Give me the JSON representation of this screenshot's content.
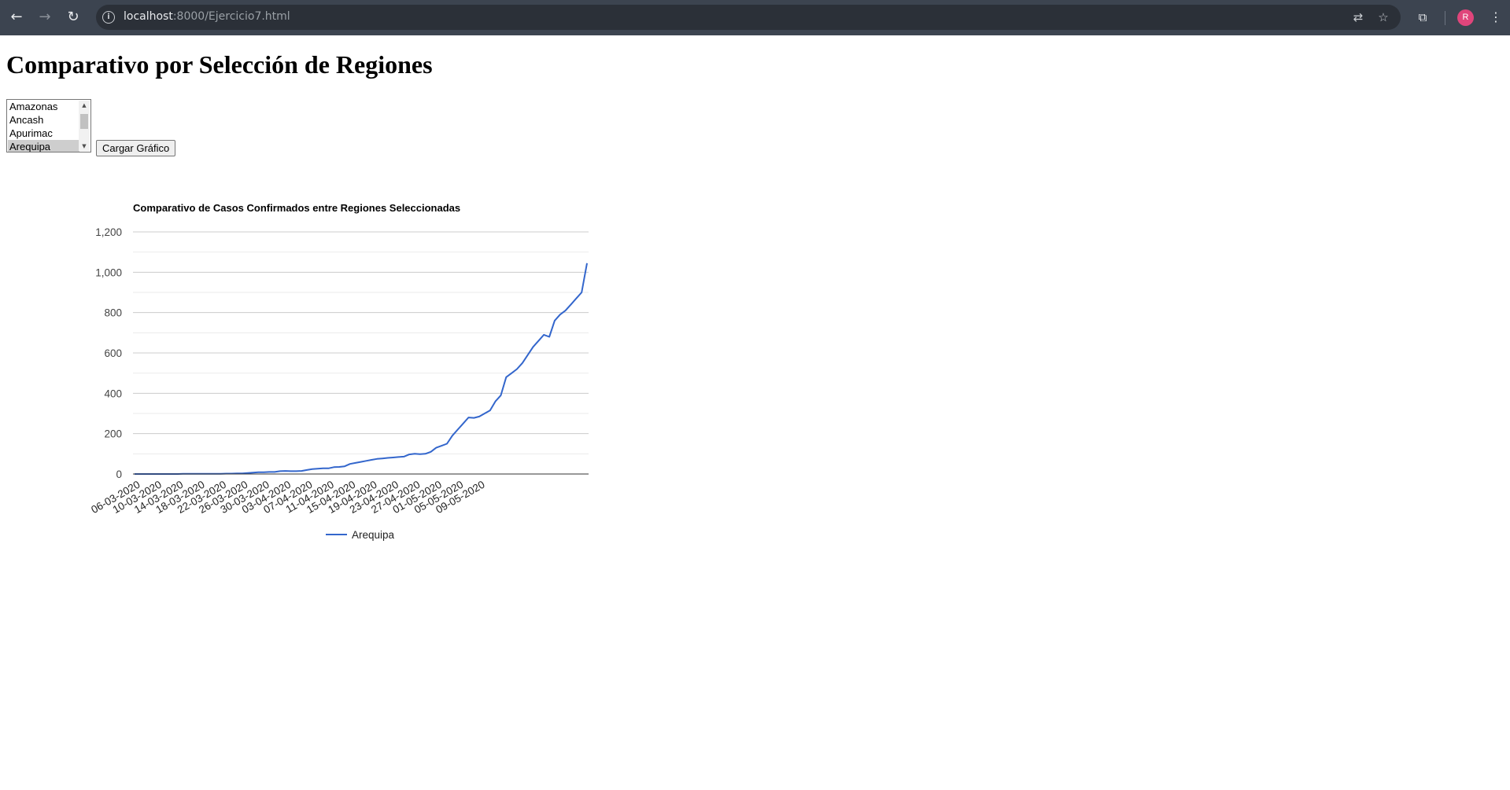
{
  "browser": {
    "url_host": "localhost",
    "url_rest": ":8000/Ejercicio7.html",
    "profile_initial": "R"
  },
  "page": {
    "title": "Comparativo por Selección de Regiones",
    "regions": [
      "Amazonas",
      "Ancash",
      "Apurimac",
      "Arequipa"
    ],
    "selected_region": "Arequipa",
    "load_button": "Cargar Gráfico"
  },
  "chart_data": {
    "type": "line",
    "title": "Comparativo de Casos Confirmados entre Regiones Seleccionadas",
    "xlabel": "",
    "ylabel": "",
    "ylim": [
      0,
      1200
    ],
    "yticks": [
      0,
      200,
      400,
      600,
      800,
      1000,
      1200
    ],
    "ytick_labels": [
      "0",
      "200",
      "400",
      "600",
      "800",
      "1,000",
      "1,200"
    ],
    "grid": true,
    "legend_position": "bottom",
    "x_tick_labels": [
      "06-03-2020",
      "10-03-2020",
      "14-03-2020",
      "18-03-2020",
      "22-03-2020",
      "26-03-2020",
      "30-03-2020",
      "03-04-2020",
      "07-04-2020",
      "11-04-2020",
      "15-04-2020",
      "19-04-2020",
      "23-04-2020",
      "27-04-2020",
      "01-05-2020",
      "05-05-2020",
      "09-05-2020"
    ],
    "series": [
      {
        "name": "Arequipa",
        "color": "#3366cc",
        "values": [
          0,
          0,
          0,
          0,
          0,
          0,
          0,
          0,
          0,
          1,
          1,
          1,
          1,
          1,
          1,
          1,
          1,
          2,
          2,
          3,
          3,
          5,
          7,
          9,
          9,
          10,
          10,
          14,
          15,
          14,
          14,
          15,
          20,
          24,
          26,
          28,
          28,
          34,
          35,
          38,
          50,
          55,
          60,
          65,
          70,
          75,
          77,
          80,
          82,
          84,
          86,
          97,
          100,
          98,
          100,
          110,
          130,
          140,
          150,
          190,
          220,
          250,
          280,
          278,
          285,
          300,
          315,
          360,
          390,
          480,
          500,
          520,
          550,
          590,
          630,
          660,
          690,
          680,
          760,
          790,
          810,
          840,
          870,
          900,
          1045
        ]
      }
    ]
  }
}
